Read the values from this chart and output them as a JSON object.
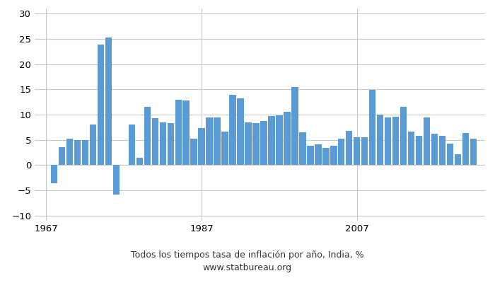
{
  "years": [
    1967,
    1968,
    1969,
    1970,
    1971,
    1972,
    1973,
    1974,
    1975,
    1976,
    1977,
    1978,
    1979,
    1980,
    1981,
    1982,
    1983,
    1984,
    1985,
    1986,
    1987,
    1988,
    1989,
    1990,
    1991,
    1992,
    1993,
    1994,
    1995,
    1996,
    1997,
    1998,
    1999,
    2000,
    2001,
    2002,
    2003,
    2004,
    2005,
    2006,
    2007,
    2008,
    2009,
    2010,
    2011,
    2012,
    2013,
    2014,
    2015,
    2016,
    2017,
    2018,
    2019,
    2020,
    2021,
    2022
  ],
  "values": [
    0.0,
    -3.6,
    3.6,
    5.2,
    5.0,
    5.0,
    8.0,
    23.9,
    25.3,
    -5.8,
    0.0,
    8.0,
    1.5,
    11.5,
    9.3,
    8.5,
    8.3,
    13.0,
    12.8,
    5.2,
    7.3,
    9.5,
    9.4,
    6.6,
    13.9,
    13.2,
    8.4,
    8.3,
    8.8,
    9.7,
    9.9,
    10.5,
    15.5,
    6.5,
    3.8,
    4.1,
    3.4,
    3.9,
    5.2,
    6.8,
    5.5,
    5.5,
    14.97,
    10.0,
    9.5,
    9.6,
    11.5,
    6.6,
    5.8,
    9.5,
    6.2,
    5.8,
    4.3,
    2.1,
    6.3,
    5.3
  ],
  "bar_color": "#5b9bd5",
  "title": "Todos los tiempos tasa de inflación por año, India, %",
  "subtitle": "www.statbureau.org",
  "yticks": [
    -10,
    -5,
    0,
    5,
    10,
    15,
    20,
    25,
    30
  ],
  "xtick_labels": [
    "1967",
    "1987",
    "2007"
  ],
  "xtick_positions": [
    1967,
    1987,
    2007
  ],
  "ylim": [
    -11,
    31
  ],
  "xlim": [
    1965.5,
    2023.5
  ],
  "title_fontsize": 9,
  "subtitle_fontsize": 9,
  "tick_fontsize": 9.5,
  "background_color": "#ffffff",
  "grid_color": "#c8c8c8"
}
